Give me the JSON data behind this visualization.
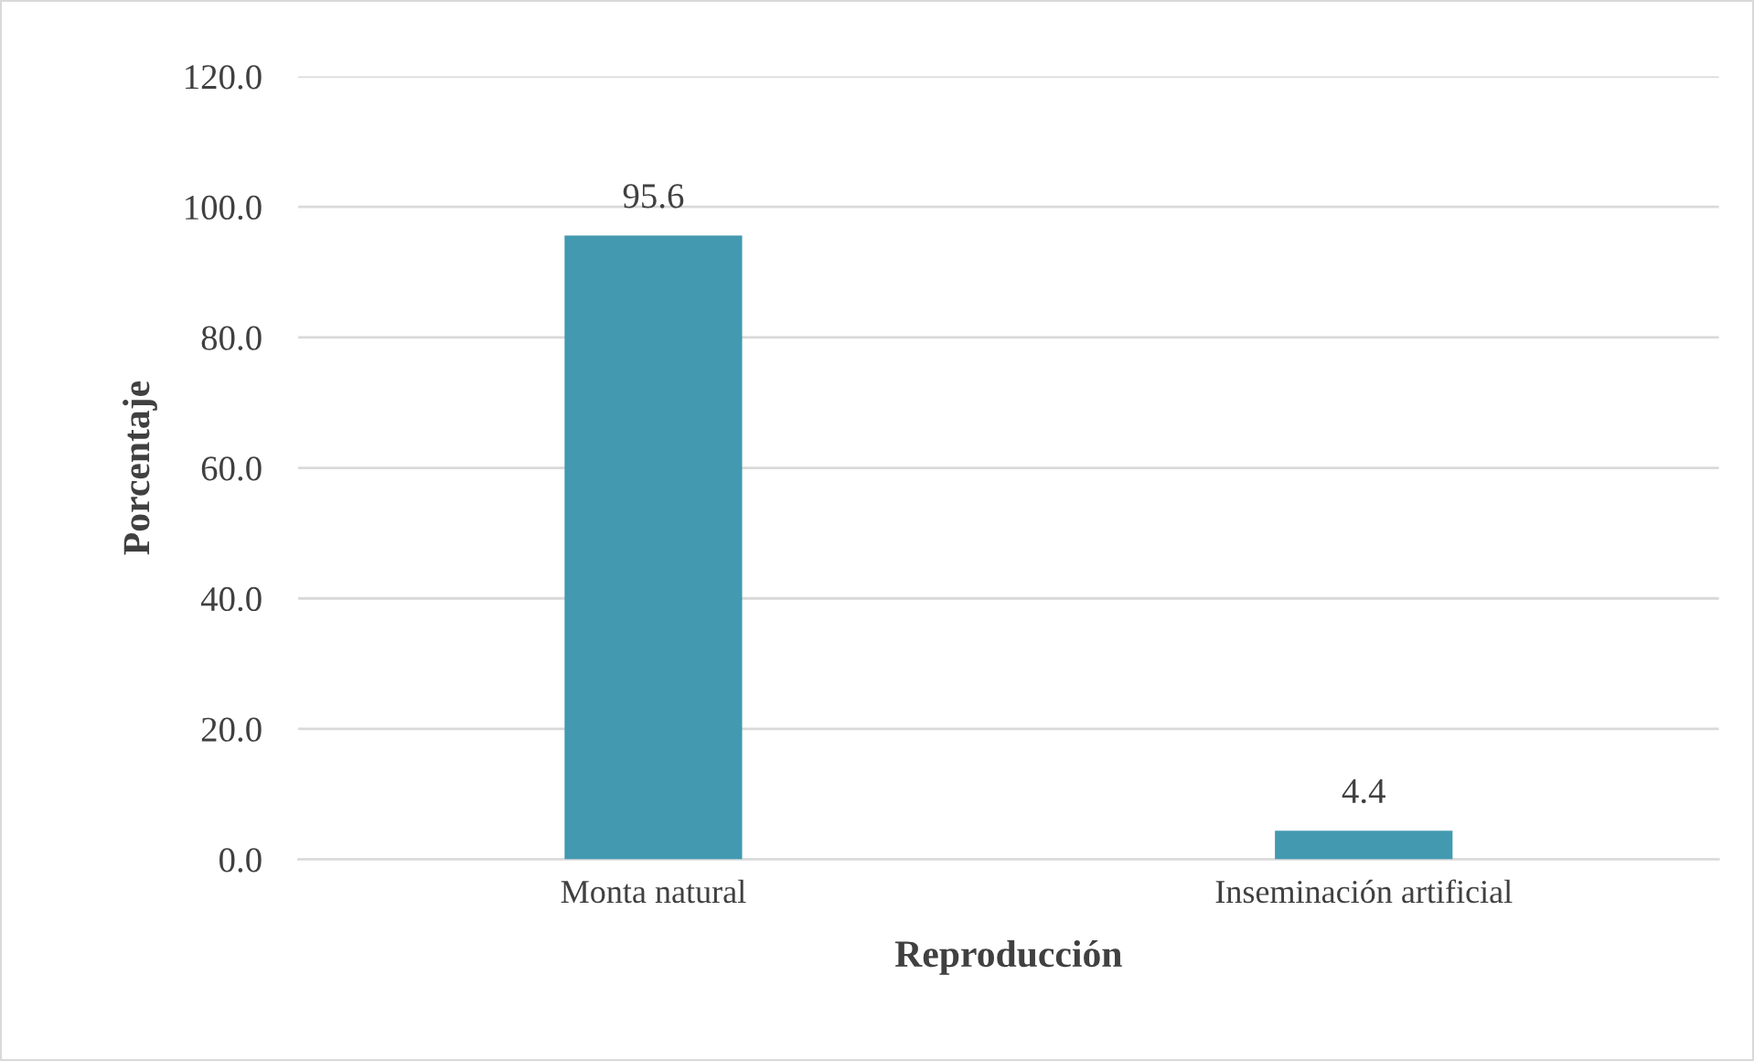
{
  "chart_data": {
    "type": "bar",
    "xlabel": "Reproducción",
    "ylabel": "Porcentaje",
    "categories": [
      "Monta natural",
      "Inseminación artificial"
    ],
    "values": [
      95.6,
      4.4
    ],
    "color": "#4299b0",
    "ylim": [
      0,
      120
    ],
    "yticks": [
      {
        "value": 0,
        "label": "0.0"
      },
      {
        "value": 20,
        "label": "20.0"
      },
      {
        "value": 40,
        "label": "40.0"
      },
      {
        "value": 60,
        "label": "60.0"
      },
      {
        "value": 80,
        "label": "80.0"
      },
      {
        "value": 100,
        "label": "100.0"
      },
      {
        "value": 120,
        "label": "120.0"
      }
    ],
    "grid": "y",
    "data_labels": true
  }
}
